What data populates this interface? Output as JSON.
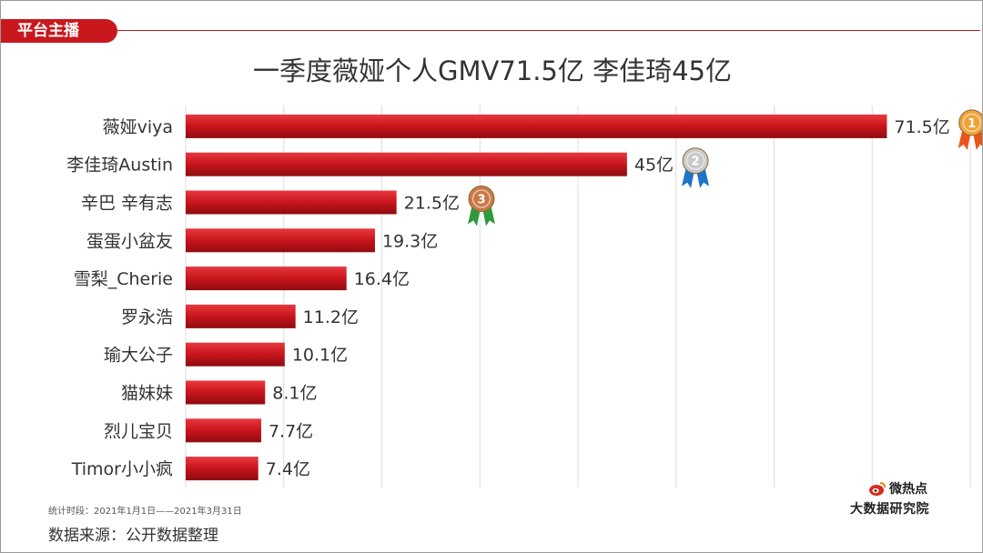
{
  "header": {
    "tag": "平台主播"
  },
  "chart_data": {
    "type": "bar",
    "orientation": "horizontal",
    "title": "一季度薇娅个人GMV71.5亿 李佳琦45亿",
    "categories": [
      "薇娅viya",
      "李佳琦Austin",
      "辛巴 辛有志",
      "蛋蛋小盆友",
      "雪梨_Cherie",
      "罗永浩",
      "瑜大公子",
      "猫妹妹",
      "烈儿宝贝",
      "Timor小小疯"
    ],
    "values": [
      71.5,
      45,
      21.5,
      19.3,
      16.4,
      11.2,
      10.1,
      8.1,
      7.7,
      7.4
    ],
    "value_labels": [
      "71.5亿",
      "45亿",
      "21.5亿",
      "19.3亿",
      "16.4亿",
      "11.2亿",
      "10.1亿",
      "8.1亿",
      "7.7亿",
      "7.4亿"
    ],
    "unit": "亿",
    "xlim": [
      0,
      80
    ],
    "grid": true,
    "bar_color": "#c8141c",
    "medals": [
      {
        "rank": "1",
        "ribbon_color": "#e8541c",
        "medal_color": "#f0a23a"
      },
      {
        "rank": "2",
        "ribbon_color": "#1f73c8",
        "medal_color": "#c9c9c9"
      },
      {
        "rank": "3",
        "ribbon_color": "#2f9a3c",
        "medal_color": "#c87a45"
      }
    ]
  },
  "footer": {
    "period": "统计时段：2021年1月1日——2021年3月31日",
    "source": "数据来源：公开数据整理"
  },
  "brand": {
    "name": "微热点",
    "subtitle": "大数据研究院"
  }
}
